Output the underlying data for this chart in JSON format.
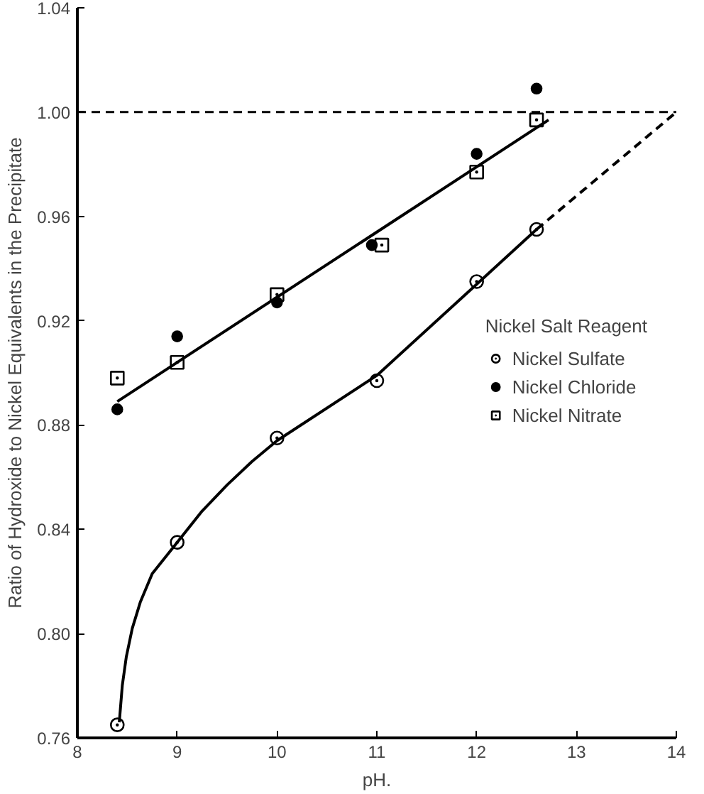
{
  "chart_data": {
    "type": "scatter",
    "xlabel": "pH.",
    "ylabel": "Ratio of Hydroxide to Nickel Equivalents in the Precipitate",
    "legend_title": "Nickel Salt Reagent",
    "xlim": [
      8,
      14
    ],
    "ylim": [
      0.76,
      1.04
    ],
    "xticks": [
      8,
      9,
      10,
      11,
      12,
      13,
      14
    ],
    "yticks": [
      0.76,
      {
        "value": 0.8,
        "label": "0.80"
      },
      0.84,
      0.88,
      0.92,
      0.96,
      {
        "value": 1.0,
        "label": "1.00"
      },
      1.04
    ],
    "grid": false,
    "legend": "right",
    "ref_lines": [
      {
        "axis": "y",
        "value": 1.0,
        "line_style": "dashed",
        "color": "#000000"
      }
    ],
    "series": [
      {
        "name": "Nickel Sulfate",
        "marker": "circle_dot",
        "color": "#000000",
        "x": [
          8.4,
          9,
          10,
          11,
          12,
          12.6
        ],
        "values": [
          0.765,
          0.835,
          0.875,
          0.897,
          0.935,
          0.955
        ]
      },
      {
        "name": "Nickel Chloride",
        "marker": "circle",
        "color": "#000000",
        "x": [
          8.4,
          9,
          10,
          10.95,
          12,
          12.6
        ],
        "values": [
          0.886,
          0.914,
          0.927,
          0.949,
          0.984,
          1.009
        ]
      },
      {
        "name": "Nickel Nitrate",
        "marker": "square_dot",
        "color": "#000000",
        "x": [
          8.4,
          9,
          10,
          11.05,
          12,
          12.6
        ],
        "values": [
          0.898,
          0.904,
          0.93,
          0.949,
          0.977,
          0.997
        ]
      },
      {
        "type": "line",
        "line_style": "solid",
        "color": "#000000",
        "x": [
          8.4,
          12.72
        ],
        "values": [
          0.889,
          0.997
        ]
      },
      {
        "type": "line",
        "line_style": "solid",
        "color": "#000000",
        "x": [
          8.42,
          8.45,
          8.49,
          8.55,
          8.63,
          8.75,
          9,
          9.25,
          9.5,
          9.75,
          10,
          11,
          12,
          12.6
        ],
        "values": [
          0.766,
          0.78,
          0.791,
          0.802,
          0.812,
          0.823,
          0.835,
          0.847,
          0.857,
          0.866,
          0.874,
          0.899,
          0.934,
          0.955
        ]
      },
      {
        "type": "line",
        "line_style": "dashed",
        "color": "#000000",
        "x": [
          12.6,
          14
        ],
        "values": [
          0.955,
          1.0
        ]
      }
    ]
  }
}
